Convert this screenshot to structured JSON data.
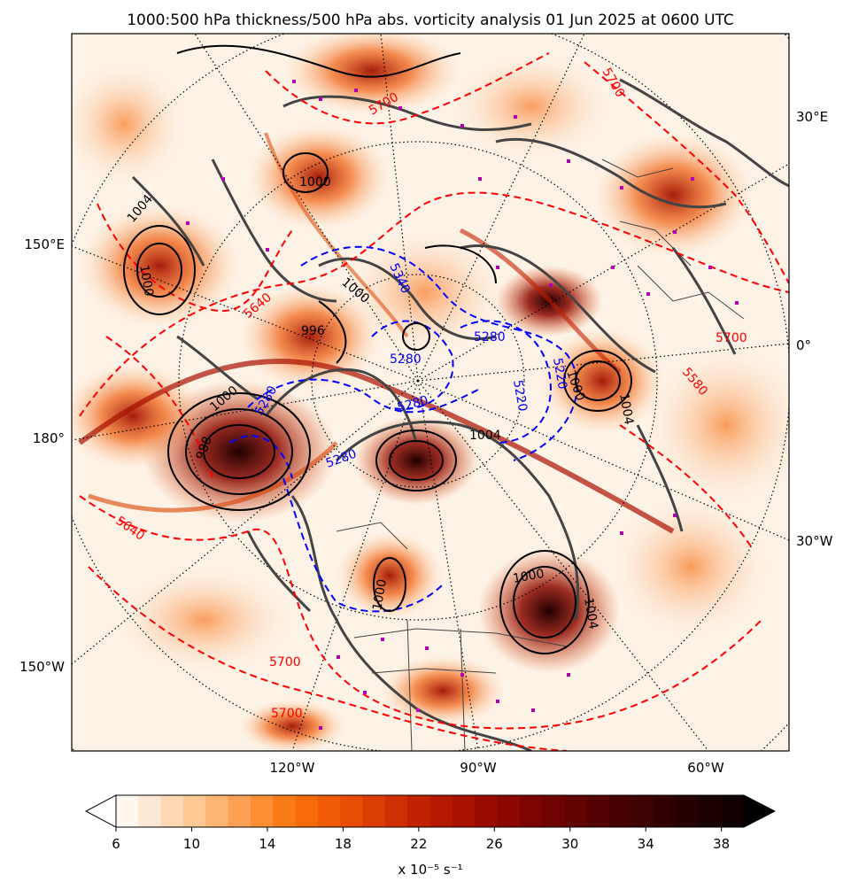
{
  "title": "1000:500 hPa thickness/500 hPa abs. vorticity analysis 01 Jun 2025 at 0600 UTC",
  "lon_labels": {
    "right": [
      "30°E",
      "0°",
      "30°W"
    ],
    "left": [
      "150°E",
      "180°",
      "150°W"
    ],
    "bottom": [
      "120°W",
      "90°W",
      "60°W"
    ]
  },
  "colorbar": {
    "ticks": [
      "6",
      "10",
      "14",
      "18",
      "22",
      "26",
      "30",
      "34",
      "38"
    ],
    "unit_label": "x 10⁻⁵ s⁻¹",
    "colors": [
      "#fff7ee",
      "#fde8d3",
      "#fdd8b3",
      "#fdc894",
      "#fdb574",
      "#fda254",
      "#fd8f34",
      "#fb7b18",
      "#f76b0a",
      "#f05c05",
      "#e84d03",
      "#dc3d02",
      "#cf2e02",
      "#c22202",
      "#b51801",
      "#a71101",
      "#990b01",
      "#8b0801",
      "#7d0501",
      "#6f0301",
      "#610201",
      "#540201",
      "#480101",
      "#3c0101",
      "#300000",
      "#250000",
      "#1a0000",
      "#100000"
    ],
    "under_color": "#ffffff",
    "over_color": "#000000"
  },
  "contours": {
    "thickness_high": {
      "color": "#ff0000",
      "labels": [
        "5700",
        "5640",
        "5700",
        "5700",
        "5700",
        "5640",
        "5580",
        "5700"
      ]
    },
    "thickness_low": {
      "color": "#0000ff",
      "labels": [
        "5280",
        "5280",
        "5280",
        "5280",
        "5280",
        "5340",
        "5220",
        "5220"
      ]
    },
    "mslp": {
      "color": "#000000",
      "labels": [
        "1004",
        "1000",
        "996",
        "1000",
        "1004",
        "1000",
        "988",
        "1004",
        "1000",
        "1000",
        "1004",
        "1000",
        "1000"
      ]
    }
  },
  "coastline_color": "#444444",
  "station_marker_color": "#b000b0"
}
